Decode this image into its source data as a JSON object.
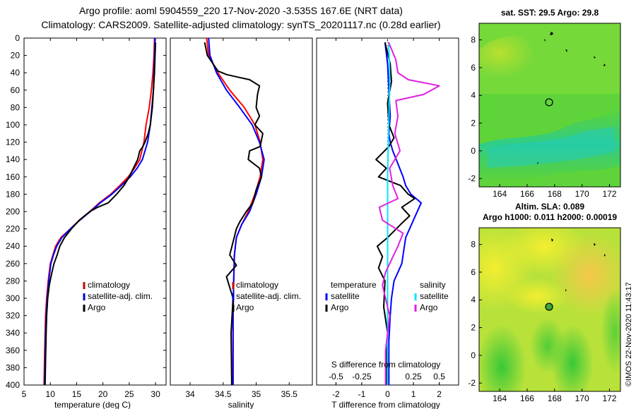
{
  "header": {
    "title_line1": "Argo profile: aoml 5904559_220 17-Nov-2020 -3.535S 167.6E (NRT data)",
    "title_line2": "Climatology: CARS2009. Satellite-adjusted climatology: synTS_20201117.nc (0.28d earlier)"
  },
  "colors": {
    "climatology": "#ff0000",
    "satellite": "#0000ff",
    "argo": "#000000",
    "salinity_satellite": "#00e5ff",
    "salinity_argo": "#e020e0",
    "legend_temp_clim": "#cc0000",
    "legend_temp_sat": "#0000cc",
    "map_marker_fill": "#3aa83a"
  },
  "depth_ticks": [
    "0",
    "20",
    "40",
    "60",
    "80",
    "100",
    "120",
    "140",
    "160",
    "180",
    "200",
    "220",
    "240",
    "260",
    "280",
    "300",
    "320",
    "340",
    "360",
    "380",
    "400"
  ],
  "chart_data": [
    {
      "type": "line",
      "name": "temperature",
      "xlabel": "temperature (deg C)",
      "ylabel": "",
      "xlim": [
        5,
        32
      ],
      "ylim": [
        400,
        0
      ],
      "xticks": [
        "5",
        "10",
        "15",
        "20",
        "25",
        "30"
      ],
      "legend": [
        "climatology",
        "satellite-adj. clim.",
        "Argo"
      ],
      "series": [
        {
          "name": "climatology",
          "color": "#ff0000",
          "x": [
            29.8,
            29.7,
            29.5,
            29.2,
            28.8,
            28.2,
            27.8,
            27.0,
            26.0,
            24.8,
            23.2,
            21.5,
            19.3,
            17.5,
            15.5,
            13.8,
            12.0,
            11.0,
            10.5,
            10.0,
            9.6,
            9.3,
            9.1,
            9.0,
            8.9,
            8.8
          ],
          "y": [
            0,
            20,
            40,
            60,
            80,
            100,
            120,
            140,
            150,
            160,
            170,
            180,
            190,
            200,
            210,
            220,
            230,
            240,
            250,
            260,
            280,
            300,
            320,
            340,
            370,
            400
          ]
        },
        {
          "name": "satellite-adj. clim.",
          "color": "#0000ff",
          "x": [
            29.9,
            29.8,
            29.7,
            29.6,
            29.3,
            29.0,
            28.5,
            27.5,
            26.5,
            25.2,
            23.5,
            21.7,
            19.5,
            17.6,
            15.6,
            13.8,
            12.2,
            11.2,
            10.6,
            10.1,
            9.7,
            9.4,
            9.2,
            9.1,
            9.0,
            8.9
          ],
          "y": [
            0,
            20,
            40,
            60,
            80,
            100,
            120,
            140,
            150,
            160,
            170,
            180,
            190,
            200,
            210,
            220,
            230,
            240,
            250,
            260,
            280,
            300,
            320,
            340,
            370,
            400
          ]
        },
        {
          "name": "Argo",
          "color": "#000000",
          "x": [
            30.0,
            29.9,
            29.8,
            29.6,
            29.4,
            29.0,
            28.6,
            28.0,
            27.6,
            27.0,
            26.6,
            25.8,
            25.0,
            24.0,
            22.6,
            21.0,
            19.0,
            17.5,
            15.5,
            14.0,
            12.7,
            11.8,
            11.3,
            10.7,
            10.3,
            9.8,
            9.5,
            9.3,
            9.2,
            9.1,
            9.0
          ],
          "y": [
            5,
            20,
            40,
            60,
            80,
            100,
            110,
            120,
            125,
            130,
            140,
            150,
            160,
            170,
            180,
            190,
            195,
            200,
            210,
            220,
            230,
            240,
            250,
            260,
            270,
            285,
            300,
            320,
            340,
            370,
            400
          ]
        }
      ]
    },
    {
      "type": "line",
      "name": "salinity",
      "xlabel": "salinity",
      "ylabel": "",
      "xlim": [
        33.7,
        35.85
      ],
      "ylim": [
        400,
        0
      ],
      "xticks": [
        "34",
        "34.5",
        "35",
        "35.5"
      ],
      "legend": [
        "climatology",
        "satellite-adj. clim.",
        "Argo"
      ],
      "series": [
        {
          "name": "climatology",
          "color": "#ff0000",
          "x": [
            34.25,
            34.28,
            34.42,
            34.6,
            34.82,
            34.98,
            35.06,
            35.1,
            35.06,
            34.98,
            34.88,
            34.78,
            34.7,
            34.67,
            34.66,
            34.65,
            34.65,
            34.65
          ],
          "y": [
            0,
            20,
            40,
            60,
            80,
            100,
            120,
            140,
            160,
            180,
            200,
            215,
            230,
            250,
            280,
            320,
            360,
            400
          ]
        },
        {
          "name": "satellite-adj. clim.",
          "color": "#0000ff",
          "x": [
            34.28,
            34.3,
            34.4,
            34.55,
            34.75,
            34.94,
            35.05,
            35.12,
            35.08,
            35.0,
            34.9,
            34.78,
            34.7,
            34.67,
            34.66,
            34.65,
            34.65,
            34.65
          ],
          "y": [
            0,
            20,
            40,
            60,
            80,
            100,
            120,
            140,
            160,
            180,
            200,
            215,
            230,
            250,
            280,
            320,
            360,
            400
          ]
        },
        {
          "name": "Argo",
          "color": "#000000",
          "x": [
            34.22,
            34.26,
            34.35,
            34.42,
            34.55,
            34.72,
            34.9,
            35.05,
            35.02,
            35.0,
            35.05,
            34.98,
            35.1,
            35.06,
            34.9,
            34.88,
            35.05,
            35.08,
            35.0,
            34.95,
            34.85,
            34.75,
            34.7,
            34.65,
            34.6,
            34.7,
            34.55,
            34.65,
            34.62,
            34.63
          ],
          "y": [
            5,
            20,
            30,
            38,
            42,
            45,
            48,
            55,
            65,
            80,
            90,
            100,
            110,
            125,
            130,
            140,
            150,
            160,
            175,
            190,
            200,
            212,
            220,
            235,
            250,
            262,
            275,
            300,
            340,
            400
          ]
        }
      ]
    },
    {
      "type": "line",
      "name": "difference from climatology",
      "xlabel": "T difference from climatology",
      "x2label": "S difference from climatology",
      "xlim": [
        -2.75,
        2.75
      ],
      "x2lim": [
        -0.6875,
        0.6875
      ],
      "ylim": [
        400,
        0
      ],
      "xticks": [
        "-2",
        "-1",
        "0",
        "1",
        "2"
      ],
      "x2ticks": [
        "-0.5",
        "-0.25",
        "0",
        "0.25",
        "0.5"
      ],
      "legend_temperature": "temperature",
      "legend_salinity": "salinity",
      "legend_entries": [
        "satellite",
        "Argo"
      ],
      "series": [
        {
          "name": "temperature satellite",
          "color": "#0000ff",
          "x": [
            -0.1,
            0.0,
            0.05,
            0.1,
            0.05,
            0.1,
            0.2,
            0.4,
            0.6,
            0.7,
            0.9,
            1.3,
            1.0,
            0.7,
            0.6,
            0.55,
            0.4,
            0.25,
            0.15,
            0.1,
            0.05,
            0.05,
            0.05
          ],
          "y": [
            5,
            30,
            60,
            90,
            110,
            120,
            130,
            145,
            160,
            170,
            180,
            190,
            210,
            230,
            250,
            260,
            270,
            280,
            300,
            320,
            350,
            380,
            400
          ]
        },
        {
          "name": "temperature Argo",
          "color": "#000000",
          "x": [
            -0.1,
            0.1,
            0.15,
            0.0,
            0.05,
            0.25,
            0.05,
            -0.45,
            -0.05,
            -0.35,
            0.5,
            0.8,
            1.05,
            0.55,
            0.85,
            0.5,
            0.0,
            -0.4,
            -0.2,
            -0.35,
            -0.1,
            -0.15,
            0.0,
            -0.05,
            -0.05
          ],
          "y": [
            5,
            30,
            50,
            75,
            100,
            115,
            125,
            140,
            150,
            160,
            170,
            180,
            185,
            195,
            205,
            215,
            230,
            240,
            252,
            265,
            280,
            310,
            340,
            370,
            400
          ]
        },
        {
          "name": "salinity satellite",
          "color": "#00e5ff",
          "x2": [
            0.01,
            0.02,
            0.02,
            0.015,
            0.01,
            0.005,
            0.0,
            0.0,
            0.0,
            0.0,
            0.0,
            0.0,
            0.0
          ],
          "y": [
            5,
            40,
            60,
            80,
            100,
            130,
            160,
            200,
            240,
            280,
            320,
            360,
            400
          ]
        },
        {
          "name": "salinity Argo",
          "color": "#e020e0",
          "x2": [
            0.01,
            0.08,
            0.1,
            0.2,
            0.5,
            0.35,
            0.08,
            0.1,
            0.07,
            0.12,
            0.02,
            0.05,
            0.1,
            -0.08,
            -0.05,
            0.15,
            0.1,
            -0.02,
            -0.05,
            -0.02,
            0.02,
            -0.02,
            -0.02
          ],
          "y": [
            5,
            25,
            40,
            48,
            55,
            65,
            72,
            90,
            110,
            130,
            150,
            170,
            185,
            195,
            210,
            225,
            240,
            270,
            285,
            300,
            320,
            360,
            400
          ]
        }
      ]
    }
  ],
  "maps": {
    "sst": {
      "title": "sat. SST: 29.5 Argo: 29.8",
      "lon_ticks": [
        "164",
        "166",
        "168",
        "170",
        "172"
      ],
      "lat_ticks": [
        "8",
        "6",
        "4",
        "2",
        "0",
        "-2"
      ],
      "lon_range": [
        162.5,
        172.8
      ],
      "lat_range": [
        -2.6,
        9.2
      ],
      "marker_lon": 167.6,
      "marker_lat": 3.5
    },
    "sla": {
      "title_line1": "Altim. SLA: 0.089",
      "title_line2": "Argo h1000: 0.011 h2000: 0.00019",
      "lon_ticks": [
        "164",
        "166",
        "168",
        "170",
        "172"
      ],
      "lat_ticks": [
        "8",
        "6",
        "4",
        "2",
        "0",
        "-2"
      ],
      "lon_range": [
        162.5,
        172.8
      ],
      "lat_range": [
        -2.6,
        9.2
      ],
      "marker_lon": 167.6,
      "marker_lat": 3.5
    }
  },
  "footer": {
    "credit": "©IMOS 22-Nov-2020 11:43:17"
  }
}
